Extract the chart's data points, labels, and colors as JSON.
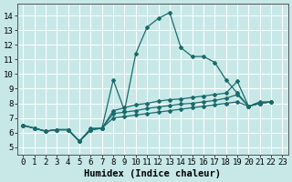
{
  "xlabel": "Humidex (Indice chaleur)",
  "xlim": [
    -0.5,
    23.5
  ],
  "ylim": [
    4.5,
    14.8
  ],
  "xticks": [
    0,
    1,
    2,
    3,
    4,
    5,
    6,
    7,
    8,
    9,
    10,
    11,
    12,
    13,
    14,
    15,
    16,
    17,
    18,
    19,
    20,
    21,
    22,
    23
  ],
  "yticks": [
    5,
    6,
    7,
    8,
    9,
    10,
    11,
    12,
    13,
    14
  ],
  "background_color": "#c8e8e8",
  "grid_color": "#ffffff",
  "line_color": "#1a6b6b",
  "series": [
    [
      6.5,
      6.3,
      6.1,
      6.2,
      6.2,
      5.4,
      6.3,
      6.3,
      9.6,
      7.5,
      11.4,
      13.2,
      13.8,
      14.2,
      11.8,
      11.2,
      11.2,
      10.8,
      9.6,
      8.7,
      7.8,
      8.1,
      8.1
    ],
    [
      6.5,
      6.3,
      6.1,
      6.2,
      6.2,
      5.4,
      6.2,
      6.3,
      7.5,
      7.7,
      7.9,
      8.0,
      8.15,
      8.25,
      8.3,
      8.4,
      8.5,
      8.6,
      8.7,
      9.5,
      7.8,
      8.0,
      8.1
    ],
    [
      6.5,
      6.3,
      6.1,
      6.2,
      6.2,
      5.4,
      6.2,
      6.3,
      7.3,
      7.4,
      7.5,
      7.65,
      7.75,
      7.85,
      7.95,
      8.0,
      8.1,
      8.2,
      8.35,
      8.6,
      7.8,
      8.0,
      8.1
    ],
    [
      6.5,
      6.3,
      6.1,
      6.2,
      6.2,
      5.4,
      6.2,
      6.3,
      7.0,
      7.1,
      7.2,
      7.3,
      7.4,
      7.5,
      7.6,
      7.7,
      7.8,
      7.9,
      8.0,
      8.1,
      7.8,
      8.0,
      8.1
    ]
  ],
  "tick_fontsize": 6.5,
  "label_fontsize": 7.5
}
